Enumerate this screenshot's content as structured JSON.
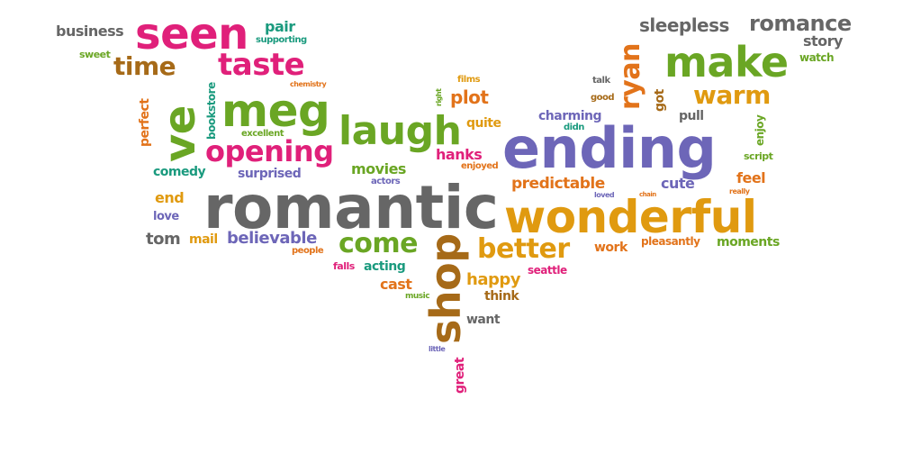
{
  "colors": {
    "pink": "#e0207a",
    "green": "#6aa624",
    "orange": "#e09a10",
    "gray": "#666666",
    "purple": "#6d66b8",
    "brown": "#a66a18",
    "teal": "#1a9a7e",
    "darkorange": "#e2731a"
  },
  "words": [
    {
      "text": "business",
      "color": "gray"
    },
    {
      "text": "seen",
      "color": "pink"
    },
    {
      "text": "pair",
      "color": "teal"
    },
    {
      "text": "supporting",
      "color": "teal"
    },
    {
      "text": "sweet",
      "color": "green"
    },
    {
      "text": "time",
      "color": "brown"
    },
    {
      "text": "taste",
      "color": "pink"
    },
    {
      "text": "chemistry",
      "color": "darkorange"
    },
    {
      "text": "bookstore",
      "color": "teal"
    },
    {
      "text": "ve",
      "color": "green"
    },
    {
      "text": "meg",
      "color": "green"
    },
    {
      "text": "perfect",
      "color": "darkorange"
    },
    {
      "text": "excellent",
      "color": "green"
    },
    {
      "text": "opening",
      "color": "pink"
    },
    {
      "text": "laugh",
      "color": "green"
    },
    {
      "text": "comedy",
      "color": "teal"
    },
    {
      "text": "surprised",
      "color": "purple"
    },
    {
      "text": "movies",
      "color": "green"
    },
    {
      "text": "actors",
      "color": "purple"
    },
    {
      "text": "end",
      "color": "orange"
    },
    {
      "text": "love",
      "color": "purple"
    },
    {
      "text": "romantic",
      "color": "gray"
    },
    {
      "text": "tom",
      "color": "gray"
    },
    {
      "text": "mail",
      "color": "orange"
    },
    {
      "text": "believable",
      "color": "purple"
    },
    {
      "text": "people",
      "color": "darkorange"
    },
    {
      "text": "come",
      "color": "green"
    },
    {
      "text": "falls",
      "color": "pink"
    },
    {
      "text": "acting",
      "color": "teal"
    },
    {
      "text": "cast",
      "color": "darkorange"
    },
    {
      "text": "music",
      "color": "green"
    },
    {
      "text": "shop",
      "color": "brown"
    },
    {
      "text": "great",
      "color": "pink"
    },
    {
      "text": "little",
      "color": "purple"
    },
    {
      "text": "films",
      "color": "orange"
    },
    {
      "text": "right",
      "color": "green"
    },
    {
      "text": "plot",
      "color": "darkorange"
    },
    {
      "text": "quite",
      "color": "orange"
    },
    {
      "text": "hanks",
      "color": "pink"
    },
    {
      "text": "enjoyed",
      "color": "darkorange"
    },
    {
      "text": "happy",
      "color": "orange"
    },
    {
      "text": "think",
      "color": "brown"
    },
    {
      "text": "want",
      "color": "gray"
    },
    {
      "text": "better",
      "color": "orange"
    },
    {
      "text": "predictable",
      "color": "darkorange"
    },
    {
      "text": "ending",
      "color": "purple"
    },
    {
      "text": "wonderful",
      "color": "orange"
    },
    {
      "text": "charming",
      "color": "purple"
    },
    {
      "text": "didn",
      "color": "teal"
    },
    {
      "text": "talk",
      "color": "gray"
    },
    {
      "text": "good",
      "color": "brown"
    },
    {
      "text": "ryan",
      "color": "darkorange"
    },
    {
      "text": "got",
      "color": "brown"
    },
    {
      "text": "pull",
      "color": "gray"
    },
    {
      "text": "sleepless",
      "color": "gray"
    },
    {
      "text": "make",
      "color": "green"
    },
    {
      "text": "warm",
      "color": "orange"
    },
    {
      "text": "romance",
      "color": "gray"
    },
    {
      "text": "story",
      "color": "gray"
    },
    {
      "text": "watch",
      "color": "green"
    },
    {
      "text": "enjoy",
      "color": "green"
    },
    {
      "text": "script",
      "color": "green"
    },
    {
      "text": "cute",
      "color": "purple"
    },
    {
      "text": "loved",
      "color": "purple"
    },
    {
      "text": "chain",
      "color": "darkorange"
    },
    {
      "text": "feel",
      "color": "darkorange"
    },
    {
      "text": "really",
      "color": "darkorange"
    },
    {
      "text": "work",
      "color": "darkorange"
    },
    {
      "text": "pleasantly",
      "color": "darkorange"
    },
    {
      "text": "moments",
      "color": "green"
    },
    {
      "text": "seattle",
      "color": "pink"
    }
  ]
}
